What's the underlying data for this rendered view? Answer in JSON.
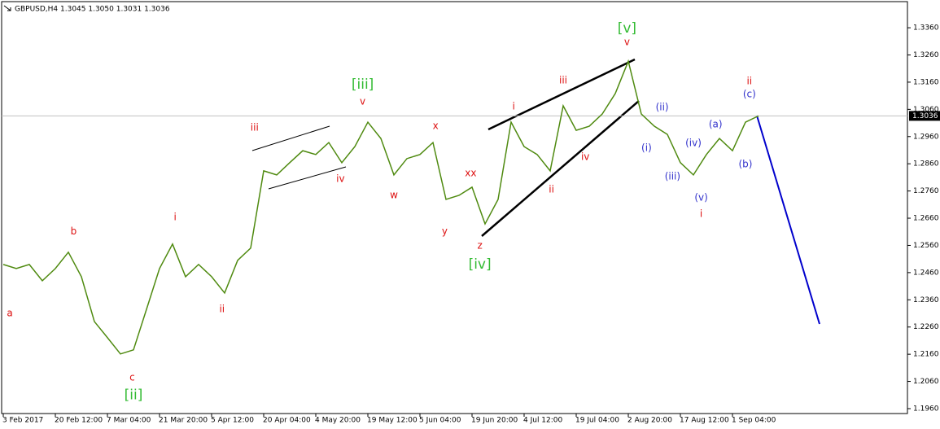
{
  "chart_data": {
    "type": "line",
    "title": "GBPUSD,H4  1.3045 1.3050 1.3031 1.3036",
    "categories": [
      "3 Feb 2017",
      null,
      null,
      null,
      "20 Feb 12:00",
      null,
      null,
      null,
      "7 Mar 04:00",
      null,
      null,
      null,
      "21 Mar 20:00",
      null,
      null,
      null,
      "5 Apr 12:00",
      null,
      null,
      null,
      "20 Apr 04:00",
      null,
      null,
      null,
      "4 May 20:00",
      null,
      null,
      null,
      "19 May 12:00",
      null,
      null,
      null,
      "5 Jun 04:00",
      null,
      null,
      null,
      "19 Jun 20:00",
      null,
      null,
      null,
      "4 Jul 12:00",
      null,
      null,
      null,
      "19 Jul 04:00",
      null,
      null,
      null,
      "2 Aug 20:00",
      null,
      null,
      null,
      "17 Aug 12:00",
      null,
      null,
      null,
      "1 Sep 04:00",
      null,
      null
    ],
    "series": [
      {
        "name": "GBPUSD",
        "color": "#4f8a10",
        "values": [
          1.249,
          1.2475,
          1.249,
          1.243,
          1.2475,
          1.2535,
          1.2445,
          1.228,
          1.2221,
          1.2161,
          1.2176,
          1.2325,
          1.2475,
          1.2565,
          1.2445,
          1.249,
          1.2445,
          1.2385,
          1.2505,
          1.255,
          1.2834,
          1.2819,
          1.2864,
          1.2908,
          1.2894,
          1.2938,
          1.2864,
          1.2923,
          1.3013,
          1.2953,
          1.2819,
          1.2879,
          1.2894,
          1.2938,
          1.2729,
          1.2744,
          1.2774,
          1.2639,
          1.2729,
          1.3013,
          1.2923,
          1.2894,
          1.2834,
          1.3073,
          1.2983,
          1.2998,
          1.3043,
          1.3118,
          1.3237,
          1.3043,
          1.2998,
          1.2968,
          1.2864,
          1.2819,
          1.2894,
          1.2953,
          1.2908,
          1.3013,
          1.3036
        ]
      }
    ],
    "last_price": 1.3036,
    "ylim": [
      1.1942,
      1.3456
    ],
    "yticks": [
      {
        "value": 1.196,
        "label": "1.1960"
      },
      {
        "value": 1.206,
        "label": "1.2060"
      },
      {
        "value": 1.216,
        "label": "1.2160"
      },
      {
        "value": 1.226,
        "label": "1.2260"
      },
      {
        "value": 1.236,
        "label": "1.2360"
      },
      {
        "value": 1.246,
        "label": "1.2460"
      },
      {
        "value": 1.256,
        "label": "1.2560"
      },
      {
        "value": 1.266,
        "label": "1.2660"
      },
      {
        "value": 1.276,
        "label": "1.2760"
      },
      {
        "value": 1.286,
        "label": "1.2860"
      },
      {
        "value": 1.296,
        "label": "1.2960"
      },
      {
        "value": 1.306,
        "label": "1.3060"
      },
      {
        "value": 1.316,
        "label": "1.3160"
      },
      {
        "value": 1.326,
        "label": "1.3260"
      },
      {
        "value": 1.336,
        "label": "1.3360"
      }
    ],
    "annotations": [
      {
        "text": "a",
        "color": "#dd1111",
        "x": 0.5,
        "y": 1.231
      },
      {
        "text": "b",
        "color": "#dd1111",
        "x": 5.4,
        "y": 1.261
      },
      {
        "text": "c",
        "color": "#dd1111",
        "x": 9.9,
        "y": 1.2074
      },
      {
        "text": "[ii]",
        "color": "#33bb33",
        "x": 10,
        "y": 1.2009
      },
      {
        "text": "i",
        "color": "#dd1111",
        "x": 13.2,
        "y": 1.2663
      },
      {
        "text": "ii",
        "color": "#dd1111",
        "x": 16.8,
        "y": 1.2325
      },
      {
        "text": "iii",
        "color": "#dd1111",
        "x": 19.3,
        "y": 1.2992
      },
      {
        "text": "iv",
        "color": "#dd1111",
        "x": 25.9,
        "y": 1.2804
      },
      {
        "text": "[iii]",
        "color": "#33bb33",
        "x": 27.6,
        "y": 1.3151
      },
      {
        "text": "v",
        "color": "#dd1111",
        "x": 27.6,
        "y": 1.3088
      },
      {
        "text": "w",
        "color": "#dd1111",
        "x": 30,
        "y": 1.2744
      },
      {
        "text": "x",
        "color": "#dd1111",
        "x": 33.2,
        "y": 1.2998
      },
      {
        "text": "xx",
        "color": "#dd1111",
        "x": 35.9,
        "y": 1.2825
      },
      {
        "text": "y",
        "color": "#dd1111",
        "x": 33.9,
        "y": 1.261
      },
      {
        "text": "z",
        "color": "#dd1111",
        "x": 36.6,
        "y": 1.2559
      },
      {
        "text": "[iv]",
        "color": "#33bb33",
        "x": 36.6,
        "y": 1.249
      },
      {
        "text": "i",
        "color": "#dd1111",
        "x": 39.2,
        "y": 1.307
      },
      {
        "text": "iii",
        "color": "#dd1111",
        "x": 43,
        "y": 1.3166
      },
      {
        "text": "ii",
        "color": "#dd1111",
        "x": 42.1,
        "y": 1.2765
      },
      {
        "text": "iv",
        "color": "#dd1111",
        "x": 44.7,
        "y": 1.2885
      },
      {
        "text": "[v]",
        "color": "#33bb33",
        "x": 47.9,
        "y": 1.3357
      },
      {
        "text": "v",
        "color": "#dd1111",
        "x": 47.9,
        "y": 1.3306
      },
      {
        "text": "(ii)",
        "color": "#3333cc",
        "x": 50.6,
        "y": 1.3067
      },
      {
        "text": "(i)",
        "color": "#3333cc",
        "x": 49.4,
        "y": 1.2917
      },
      {
        "text": "(iii)",
        "color": "#3333cc",
        "x": 51.4,
        "y": 1.2813
      },
      {
        "text": "(iv)",
        "color": "#3333cc",
        "x": 53,
        "y": 1.2935
      },
      {
        "text": "(a)",
        "color": "#3333cc",
        "x": 54.7,
        "y": 1.3004
      },
      {
        "text": "(v)",
        "color": "#3333cc",
        "x": 53.6,
        "y": 1.2735
      },
      {
        "text": "i",
        "color": "#dd1111",
        "x": 53.6,
        "y": 1.2675
      },
      {
        "text": "(b)",
        "color": "#3333cc",
        "x": 57,
        "y": 1.2858
      },
      {
        "text": "(c)",
        "color": "#3333cc",
        "x": 57.3,
        "y": 1.3115
      },
      {
        "text": "ii",
        "color": "#dd1111",
        "x": 57.3,
        "y": 1.3163
      }
    ]
  }
}
